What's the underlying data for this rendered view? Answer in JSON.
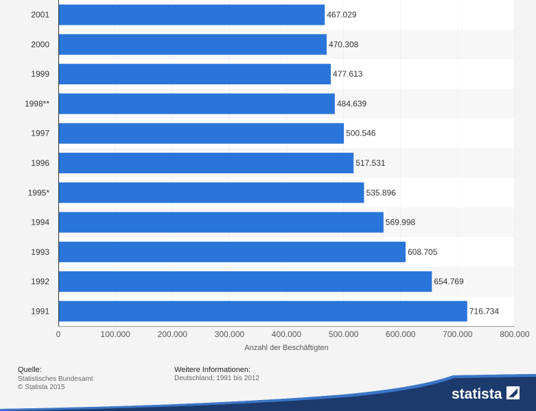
{
  "chart_data": {
    "type": "bar",
    "orientation": "horizontal",
    "categories": [
      "2001",
      "2000",
      "1999",
      "1998**",
      "1997",
      "1996",
      "1995*",
      "1994",
      "1993",
      "1992",
      "1991"
    ],
    "values": [
      467029,
      470308,
      477613,
      484639,
      500546,
      517531,
      535896,
      569998,
      608705,
      654769,
      716734
    ],
    "value_labels": [
      "467.029",
      "470.308",
      "477.613",
      "484.639",
      "500.546",
      "517.531",
      "535.896",
      "569.998",
      "608.705",
      "654.769",
      "716.734"
    ],
    "xlabel": "Anzahl der Beschäftigten",
    "xlim": [
      0,
      800000
    ],
    "xticks": [
      0,
      100000,
      200000,
      300000,
      400000,
      500000,
      600000,
      700000,
      800000
    ],
    "xtick_labels": [
      "0",
      "100.000",
      "200.000",
      "300.000",
      "400.000",
      "500.000",
      "600.000",
      "700.000",
      "800.000"
    ],
    "grid": true,
    "bar_color": "#2a75d9"
  },
  "footer": {
    "source_heading": "Quelle:",
    "source_name": "Statistisches Bundesamt",
    "copyright": "© Statista 2015",
    "info_heading": "Weitere Informationen:",
    "info_text": "Deutschland; 1991 bis 2012",
    "brand": "statista"
  }
}
